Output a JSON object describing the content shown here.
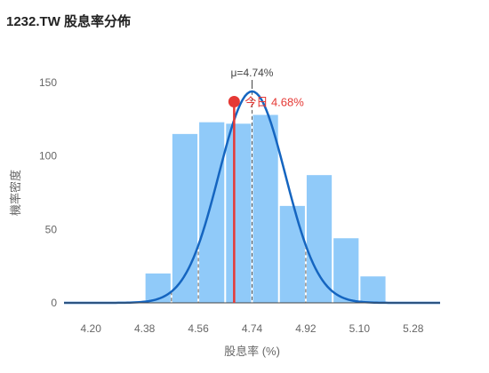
{
  "chart_data": {
    "type": "bar",
    "title": "1232.TW 股息率分佈",
    "xlabel": "股息率 (%)",
    "ylabel": "機率密度",
    "x_ticks": [
      "4.20",
      "4.38",
      "4.56",
      "4.74",
      "4.92",
      "5.10",
      "5.28"
    ],
    "y_ticks": [
      0,
      50,
      100,
      150
    ],
    "xlim": [
      4.11,
      5.37
    ],
    "ylim": [
      0,
      150
    ],
    "bins": [
      {
        "x0": 4.38,
        "x1": 4.47,
        "value": 20
      },
      {
        "x0": 4.47,
        "x1": 4.56,
        "value": 115
      },
      {
        "x0": 4.56,
        "x1": 4.65,
        "value": 123
      },
      {
        "x0": 4.65,
        "x1": 4.74,
        "value": 122
      },
      {
        "x0": 4.74,
        "x1": 4.83,
        "value": 128
      },
      {
        "x0": 4.83,
        "x1": 4.92,
        "value": 66
      },
      {
        "x0": 4.92,
        "x1": 5.01,
        "value": 87
      },
      {
        "x0": 5.01,
        "x1": 5.1,
        "value": 44
      },
      {
        "x0": 5.1,
        "x1": 5.19,
        "value": 18
      }
    ],
    "normal_fit": {
      "mean": 4.74,
      "std": 0.1115,
      "peak": 144
    },
    "dashed_lines": [
      4.38,
      4.47,
      4.56,
      4.74,
      4.92,
      5.1
    ],
    "mean_label": "μ=4.74%",
    "today": {
      "value": 4.68,
      "density": 137,
      "label": "今日 4.68%"
    },
    "grid": false,
    "colors": {
      "bar": "#90CAF9",
      "curve": "#1565C0",
      "today": "#E53935",
      "dashed": "#555555"
    }
  }
}
